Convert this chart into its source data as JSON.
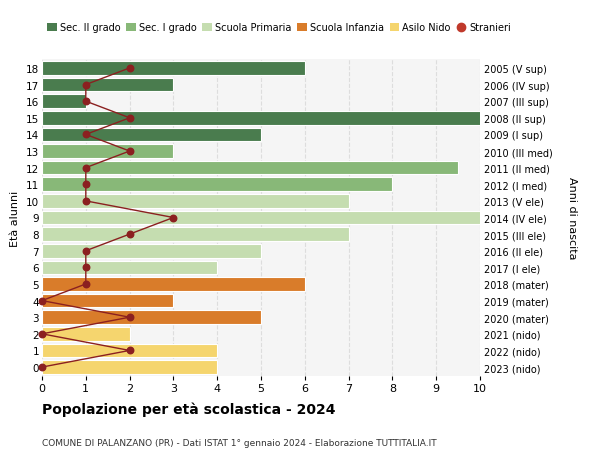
{
  "ages": [
    18,
    17,
    16,
    15,
    14,
    13,
    12,
    11,
    10,
    9,
    8,
    7,
    6,
    5,
    4,
    3,
    2,
    1,
    0
  ],
  "right_labels": [
    "2005 (V sup)",
    "2006 (IV sup)",
    "2007 (III sup)",
    "2008 (II sup)",
    "2009 (I sup)",
    "2010 (III med)",
    "2011 (II med)",
    "2012 (I med)",
    "2013 (V ele)",
    "2014 (IV ele)",
    "2015 (III ele)",
    "2016 (II ele)",
    "2017 (I ele)",
    "2018 (mater)",
    "2019 (mater)",
    "2020 (mater)",
    "2021 (nido)",
    "2022 (nido)",
    "2023 (nido)"
  ],
  "bar_values": [
    6,
    3,
    1,
    10.5,
    5,
    3,
    9.5,
    8,
    7,
    10.5,
    7,
    5,
    4,
    6,
    3,
    5,
    2,
    4,
    4
  ],
  "bar_colors": [
    "#4a7c4e",
    "#4a7c4e",
    "#4a7c4e",
    "#4a7c4e",
    "#4a7c4e",
    "#88b878",
    "#88b878",
    "#88b878",
    "#c5ddb0",
    "#c5ddb0",
    "#c5ddb0",
    "#c5ddb0",
    "#c5ddb0",
    "#d97c2a",
    "#d97c2a",
    "#d97c2a",
    "#f5d56e",
    "#f5d56e",
    "#f5d56e"
  ],
  "stranieri_x": [
    2,
    1,
    1,
    2,
    1,
    2,
    1,
    1,
    1,
    3,
    2,
    1,
    1,
    1,
    0,
    2,
    0,
    2,
    0
  ],
  "title": "Popolazione per età scolastica - 2024",
  "subtitle": "COMUNE DI PALANZANO (PR) - Dati ISTAT 1° gennaio 2024 - Elaborazione TUTTITALIA.IT",
  "ylabel_left": "Età alunni",
  "ylabel_right": "Anni di nascita",
  "xlim": [
    0,
    10
  ],
  "ylim": [
    -0.55,
    18.55
  ],
  "legend_labels": [
    "Sec. II grado",
    "Sec. I grado",
    "Scuola Primaria",
    "Scuola Infanzia",
    "Asilo Nido",
    "Stranieri"
  ],
  "legend_colors": [
    "#4a7c4e",
    "#88b878",
    "#c5ddb0",
    "#d97c2a",
    "#f5d56e",
    "#c0392b"
  ],
  "stranieri_line_color": "#8b2020",
  "grid_color": "#dddddd",
  "bg_color": "#f5f5f5",
  "bar_height": 0.82
}
